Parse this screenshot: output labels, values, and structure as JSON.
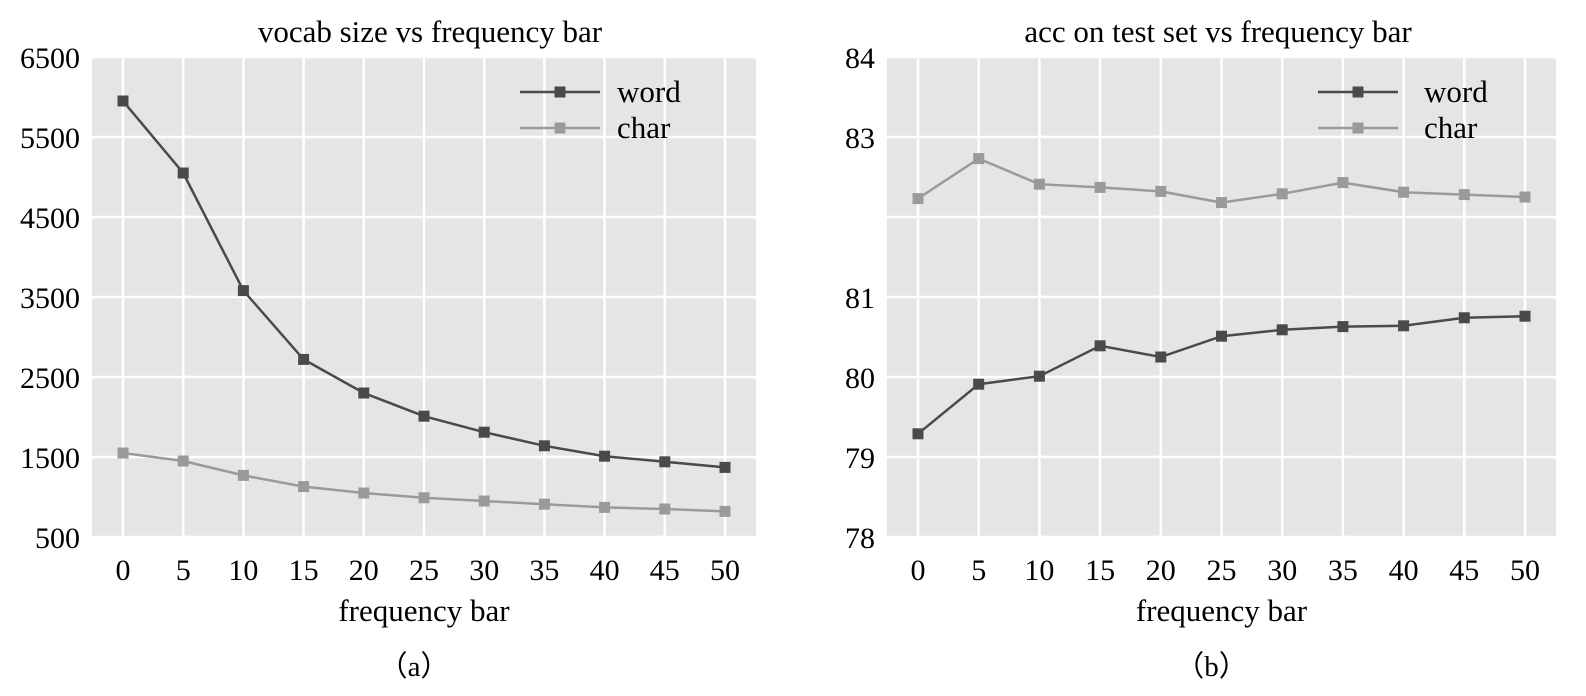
{
  "chart_data": [
    {
      "type": "line",
      "title": "vocab size vs frequency bar",
      "xlabel": "frequency bar",
      "ylabel": "",
      "caption": "（a）",
      "x": [
        0,
        5,
        10,
        15,
        20,
        25,
        30,
        35,
        40,
        45,
        50
      ],
      "x_ticks": [
        "0",
        "5",
        "10",
        "15",
        "20",
        "25",
        "30",
        "35",
        "40",
        "45",
        "50"
      ],
      "y_ticks": [
        {
          "value": 500,
          "label": "500"
        },
        {
          "value": 1500,
          "label": "1500"
        },
        {
          "value": 2500,
          "label": "2500"
        },
        {
          "value": 3500,
          "label": "3500"
        },
        {
          "value": 4500,
          "label": "4500"
        },
        {
          "value": 5500,
          "label": "5500"
        },
        {
          "value": 6500,
          "label": "6500"
        }
      ],
      "ylim": [
        500,
        6500
      ],
      "grid": true,
      "legend_position": "top-right",
      "series": [
        {
          "name": "word",
          "color": "#4a4a4a",
          "values": [
            5950,
            5050,
            3580,
            2720,
            2300,
            2010,
            1810,
            1640,
            1510,
            1440,
            1370
          ]
        },
        {
          "name": "char",
          "color": "#9a9a9a",
          "values": [
            1550,
            1450,
            1270,
            1130,
            1050,
            990,
            950,
            910,
            870,
            850,
            820
          ]
        }
      ]
    },
    {
      "type": "line",
      "title": "acc on test set vs frequency bar",
      "xlabel": "frequency bar",
      "ylabel": "",
      "caption": "（b）",
      "x": [
        0,
        5,
        10,
        15,
        20,
        25,
        30,
        35,
        40,
        45,
        50
      ],
      "x_ticks": [
        "0",
        "5",
        "10",
        "15",
        "20",
        "25",
        "30",
        "35",
        "40",
        "45",
        "50"
      ],
      "y_ticks": [
        {
          "value": 78,
          "label": "78"
        },
        {
          "value": 79,
          "label": "79"
        },
        {
          "value": 80,
          "label": "80"
        },
        {
          "value": 81,
          "label": "81"
        },
        {
          "value": 83,
          "label": "83"
        },
        {
          "value": 84,
          "label": "84"
        }
      ],
      "y_grid": [
        78,
        79,
        80,
        81,
        82,
        83,
        84
      ],
      "ylim": [
        78,
        84
      ],
      "grid": true,
      "legend_position": "top-right",
      "series": [
        {
          "name": "word",
          "color": "#4a4a4a",
          "values": [
            79.29,
            79.91,
            80.01,
            80.39,
            80.25,
            80.51,
            80.59,
            80.63,
            80.64,
            80.74,
            80.76
          ]
        },
        {
          "name": "char",
          "color": "#9a9a9a",
          "values": [
            82.23,
            82.73,
            82.41,
            82.37,
            82.32,
            82.18,
            82.29,
            82.43,
            82.31,
            82.28,
            82.25
          ]
        }
      ]
    }
  ]
}
